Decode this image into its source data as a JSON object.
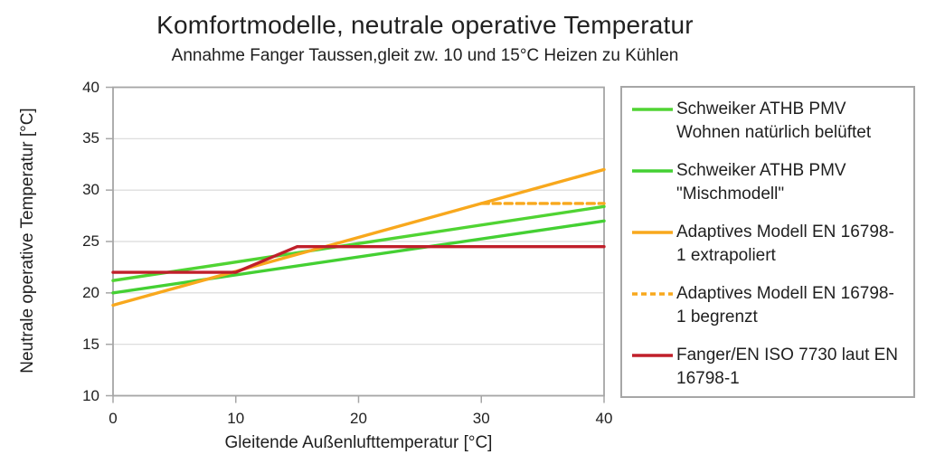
{
  "chart_data": {
    "type": "line",
    "title": "Komfortmodelle, neutrale operative Temperatur",
    "subtitle": "Annahme Fanger Taussen,gleit zw. 10 und 15°C Heizen zu Kühlen",
    "xlabel": "Gleitende Außenlufttemperatur [°C]",
    "ylabel": "Neutrale operative Temperatur [°C]",
    "xlim": [
      0,
      40
    ],
    "ylim": [
      10,
      40
    ],
    "x_ticks": [
      0,
      10,
      20,
      30,
      40
    ],
    "y_ticks": [
      10,
      15,
      20,
      25,
      30,
      35,
      40
    ],
    "grid": "horizontal-only",
    "legend_position": "right",
    "colors": {
      "grid": "#d9d9d9",
      "frame": "#a6a6a6",
      "text": "#1f1f1f",
      "background": "#ffffff"
    },
    "series": [
      {
        "name": "Schweiker ATHB PMV Wohnen natürlich belüftet",
        "legend_lines": [
          "Schweiker ATHB PMV",
          "Wohnen natürlich belüftet"
        ],
        "color": "#50d433",
        "style": "solid",
        "points": [
          [
            0,
            21.2
          ],
          [
            40,
            28.4
          ]
        ]
      },
      {
        "name": "Schweiker ATHB PMV \"Mischmodell\"",
        "legend_lines": [
          "Schweiker ATHB PMV",
          "\"Mischmodell\""
        ],
        "color": "#44d033",
        "style": "solid",
        "points": [
          [
            0,
            20.0
          ],
          [
            40,
            27.0
          ]
        ]
      },
      {
        "name": "Adaptives Modell EN 16798-1 extrapoliert",
        "legend_lines": [
          "Adaptives Modell EN 16798-",
          "1 extrapoliert"
        ],
        "color": "#f8a81d",
        "style": "solid",
        "points": [
          [
            0,
            18.8
          ],
          [
            40,
            32.0
          ]
        ]
      },
      {
        "name": "Adaptives Modell EN 16798-1 begrenzt",
        "legend_lines": [
          "Adaptives Modell EN 16798-",
          "1 begrenzt"
        ],
        "color": "#f8a81d",
        "style": "dashed",
        "points": [
          [
            30,
            28.7
          ],
          [
            40,
            28.7
          ]
        ]
      },
      {
        "name": "Fanger/EN ISO 7730 laut EN 16798-1",
        "legend_lines": [
          "Fanger/EN ISO 7730 laut EN",
          "16798-1"
        ],
        "color": "#c01f2a",
        "style": "solid",
        "points": [
          [
            0,
            22.0
          ],
          [
            10,
            22.0
          ],
          [
            15,
            24.5
          ],
          [
            40,
            24.5
          ]
        ]
      }
    ]
  }
}
